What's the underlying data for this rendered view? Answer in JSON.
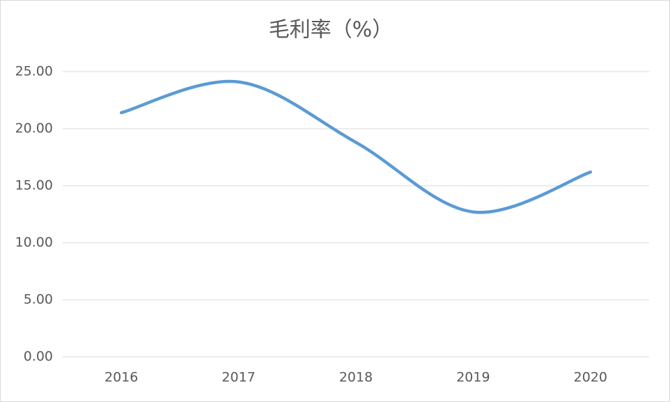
{
  "chart_data": {
    "type": "line",
    "title": "毛利率（%）",
    "categories": [
      "2016",
      "2017",
      "2018",
      "2019",
      "2020"
    ],
    "series": [
      {
        "color": "#5b9bd5",
        "values": [
          21.4,
          24.1,
          18.8,
          12.7,
          16.2
        ]
      }
    ],
    "smooth": true,
    "ylim": [
      0,
      25
    ],
    "yticks": [
      {
        "value": 0,
        "label": "0.00"
      },
      {
        "value": 5,
        "label": "5.00"
      },
      {
        "value": 10,
        "label": "10.00"
      },
      {
        "value": 15,
        "label": "15.00"
      },
      {
        "value": 20,
        "label": "20.00"
      },
      {
        "value": 25,
        "label": "25.00"
      }
    ],
    "grid": true
  }
}
